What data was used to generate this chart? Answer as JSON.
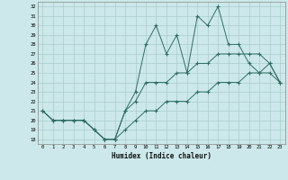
{
  "xlabel": "Humidex (Indice chaleur)",
  "x_values": [
    0,
    1,
    2,
    3,
    4,
    5,
    6,
    7,
    8,
    9,
    10,
    11,
    12,
    13,
    14,
    15,
    16,
    17,
    18,
    19,
    20,
    21,
    22,
    23
  ],
  "line1": [
    21,
    20,
    20,
    20,
    20,
    19,
    18,
    18,
    21,
    23,
    28,
    30,
    27,
    29,
    25,
    31,
    30,
    32,
    28,
    28,
    26,
    25,
    25,
    24
  ],
  "line2": [
    21,
    20,
    20,
    20,
    20,
    19,
    18,
    18,
    21,
    22,
    24,
    24,
    24,
    25,
    25,
    26,
    26,
    27,
    27,
    27,
    27,
    27,
    26,
    24
  ],
  "line3": [
    21,
    20,
    20,
    20,
    20,
    19,
    18,
    18,
    19,
    20,
    21,
    21,
    22,
    22,
    22,
    23,
    23,
    24,
    24,
    24,
    25,
    25,
    26,
    24
  ],
  "ylim": [
    17.5,
    32.5
  ],
  "yticks": [
    18,
    19,
    20,
    21,
    22,
    23,
    24,
    25,
    26,
    27,
    28,
    29,
    30,
    31,
    32
  ],
  "line_color": "#2e6e62",
  "bg_color": "#cce8ea",
  "grid_color": "#aaccce",
  "spine_color": "#888888"
}
